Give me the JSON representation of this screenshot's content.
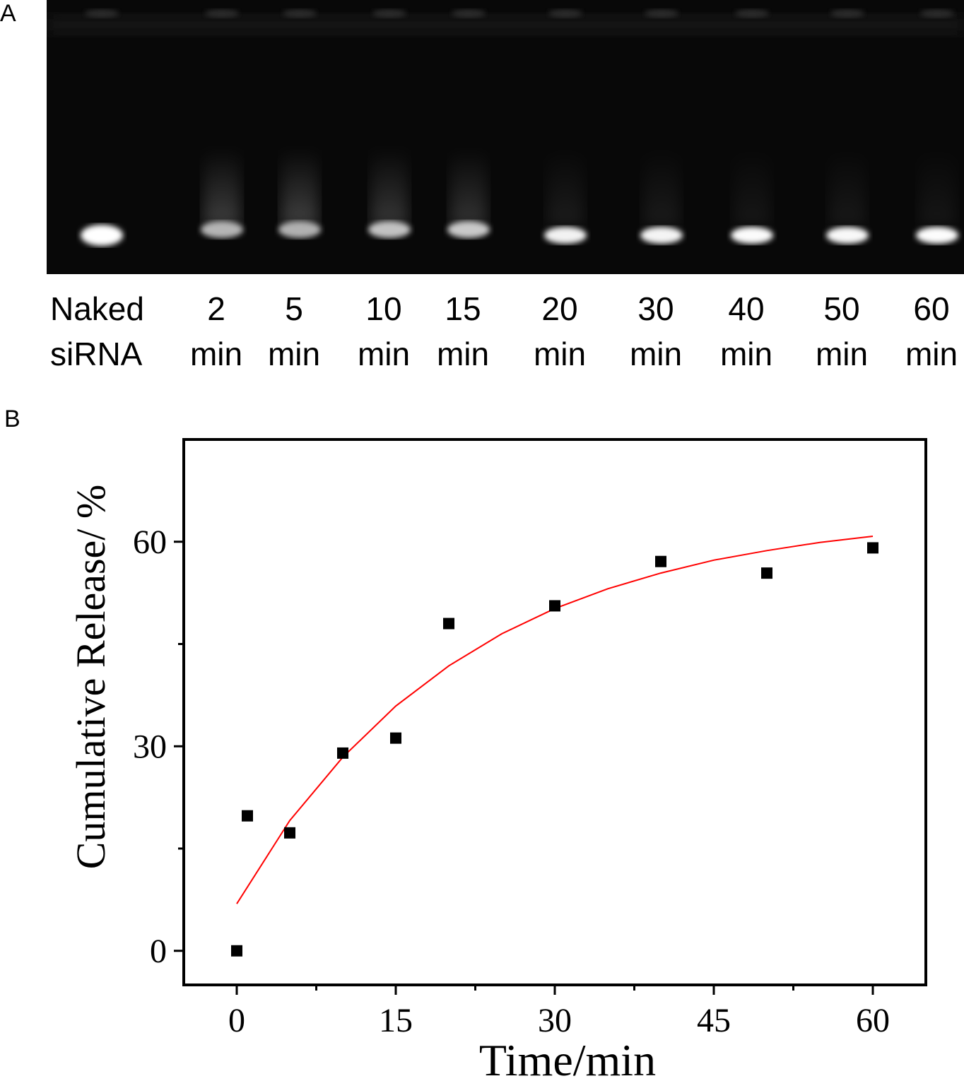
{
  "panel_a": {
    "letter": "A",
    "lanes": [
      {
        "line1": "Naked",
        "line2": "siRNA",
        "band_intensity": 1.0
      },
      {
        "line1": "2",
        "line2": "min",
        "band_intensity": 0.45
      },
      {
        "line1": "5",
        "line2": "min",
        "band_intensity": 0.42
      },
      {
        "line1": "10",
        "line2": "min",
        "band_intensity": 0.55
      },
      {
        "line1": "15",
        "line2": "min",
        "band_intensity": 0.6
      },
      {
        "line1": "20",
        "line2": "min",
        "band_intensity": 0.9
      },
      {
        "line1": "30",
        "line2": "min",
        "band_intensity": 0.92
      },
      {
        "line1": "40",
        "line2": "min",
        "band_intensity": 0.97
      },
      {
        "line1": "50",
        "line2": "min",
        "band_intensity": 0.95
      },
      {
        "line1": "60",
        "line2": "min",
        "band_intensity": 0.98
      }
    ]
  },
  "panel_b": {
    "letter": "B"
  },
  "chart_data": {
    "type": "scatter",
    "xlabel": "Time/min",
    "ylabel": "Cumulative Release/ %",
    "xlim": [
      -5,
      65
    ],
    "ylim": [
      -5,
      75
    ],
    "xticks": [
      0,
      15,
      30,
      45,
      60
    ],
    "yticks": [
      0,
      30,
      60
    ],
    "series": [
      {
        "x": [
          0,
          1,
          5,
          10,
          15,
          20,
          30,
          40,
          50,
          60
        ],
        "y": [
          0,
          19.8,
          17.3,
          29,
          31.2,
          48,
          50.6,
          57.1,
          55.4,
          59.1
        ],
        "color": "#000000",
        "marker": "square"
      }
    ],
    "fit_curve": {
      "color": "#ff0000",
      "x": [
        0,
        5,
        10,
        15,
        20,
        25,
        30,
        35,
        40,
        45,
        50,
        55,
        60
      ],
      "y": [
        6.9,
        19.1,
        28.4,
        35.9,
        41.8,
        46.5,
        50.2,
        53.1,
        55.4,
        57.3,
        58.7,
        59.9,
        60.8
      ]
    }
  }
}
